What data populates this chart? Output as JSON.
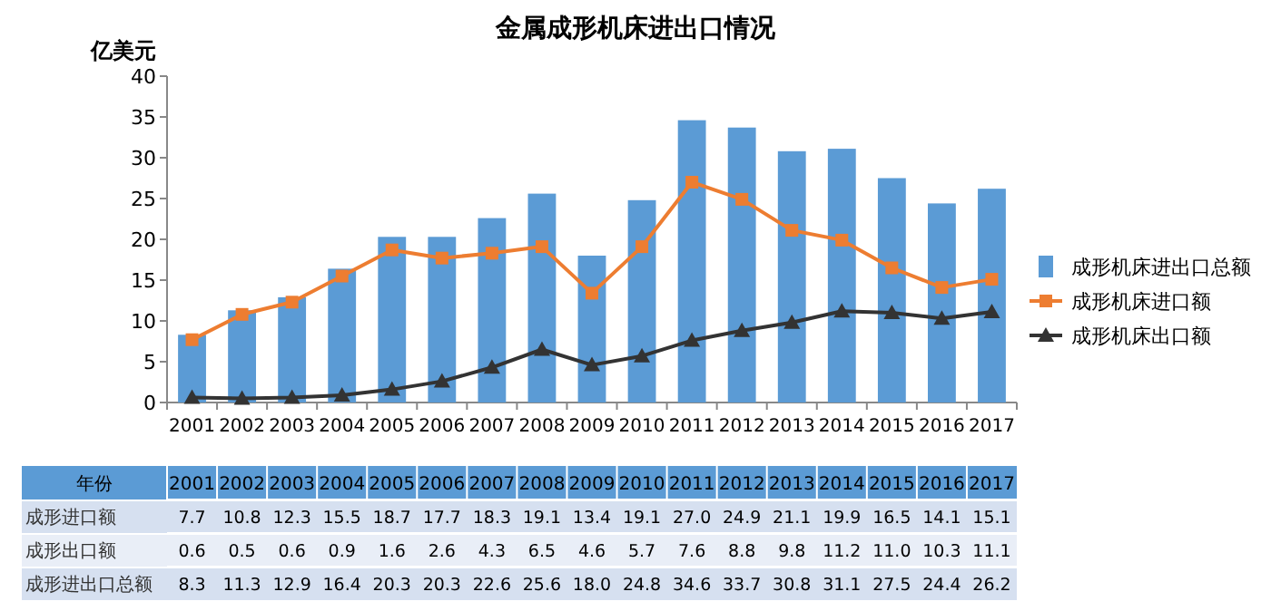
{
  "chart_data": {
    "type": "bar",
    "title": "金属成形机床进出口情况",
    "ylabel": "亿美元",
    "categories": [
      "2001",
      "2002",
      "2003",
      "2004",
      "2005",
      "2006",
      "2007",
      "2008",
      "2009",
      "2010",
      "2011",
      "2012",
      "2013",
      "2014",
      "2015",
      "2016",
      "2017"
    ],
    "series": [
      {
        "name": "成形机床进口额",
        "type": "line",
        "marker": "square",
        "color": "#ed7d31",
        "values": [
          7.7,
          10.8,
          12.3,
          15.5,
          18.7,
          17.7,
          18.3,
          19.1,
          13.4,
          19.1,
          27.0,
          24.9,
          21.1,
          19.9,
          16.5,
          14.1,
          15.1
        ],
        "value_labels": [
          "7.7",
          "10.8",
          "12.3",
          "15.5",
          "18.7",
          "17.7",
          "18.3",
          "19.1",
          "13.4",
          "19.1",
          "27.0",
          "24.9",
          "21.1",
          "19.9",
          "16.5",
          "14.1",
          "15.1"
        ]
      },
      {
        "name": "成形机床出口额",
        "type": "line",
        "marker": "triangle",
        "color": "#333333",
        "values": [
          0.6,
          0.5,
          0.6,
          0.9,
          1.6,
          2.6,
          4.3,
          6.5,
          4.6,
          5.7,
          7.6,
          8.8,
          9.8,
          11.2,
          11.0,
          10.3,
          11.1
        ],
        "value_labels": [
          "0.6",
          "0.5",
          "0.6",
          "0.9",
          "1.6",
          "2.6",
          "4.3",
          "6.5",
          "4.6",
          "5.7",
          "7.6",
          "8.8",
          "9.8",
          "11.2",
          "11.0",
          "10.3",
          "11.1"
        ]
      },
      {
        "name": "成形机床进出口总额",
        "color": "#5b9bd5",
        "values": [
          8.3,
          11.3,
          12.9,
          16.4,
          20.3,
          20.3,
          22.6,
          25.6,
          18.0,
          24.8,
          34.6,
          33.7,
          30.8,
          31.1,
          27.5,
          24.4,
          26.2
        ],
        "value_labels": [
          "8.3",
          "11.3",
          "12.9",
          "16.4",
          "20.3",
          "20.3",
          "22.6",
          "25.6",
          "18.0",
          "24.8",
          "34.6",
          "33.7",
          "30.8",
          "31.1",
          "27.5",
          "24.4",
          "26.2"
        ]
      }
    ],
    "ylim": [
      0,
      40
    ],
    "yticks": [
      0,
      5,
      10,
      15,
      20,
      25,
      30,
      35,
      40
    ],
    "grid": false,
    "legend": "right",
    "annotations": [
      "年份",
      "成形进口额",
      "成形出口额",
      "成形进出口总额"
    ]
  }
}
